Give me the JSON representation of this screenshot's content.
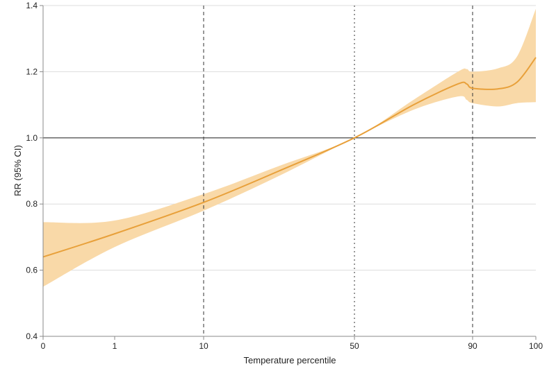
{
  "chart_data": {
    "type": "line",
    "title": "",
    "xlabel": "Temperature percentile",
    "ylabel": "RR (95% CI)",
    "ylim": [
      0.4,
      1.4
    ],
    "yticks": [
      0.4,
      0.6,
      0.8,
      1.0,
      1.2,
      1.4
    ],
    "ytick_labels": [
      "0.4",
      "0.6",
      "0.8",
      "1.0",
      "1.2",
      "1.4"
    ],
    "xticks": [
      0,
      1,
      10,
      50,
      90,
      100
    ],
    "xtick_labels": [
      "0",
      "1",
      "10",
      "50",
      "90",
      "100"
    ],
    "grid": true,
    "reference_line_y": 1.0,
    "vertical_lines": [
      {
        "x": 10,
        "style": "dashed"
      },
      {
        "x": 50,
        "style": "dotted"
      },
      {
        "x": 90,
        "style": "dashed"
      }
    ],
    "series": [
      {
        "x": [
          0,
          1,
          10,
          30,
          50,
          70,
          85,
          88,
          90,
          94,
          97,
          100
        ],
        "y": [
          0.64,
          0.71,
          0.805,
          0.9,
          1.0,
          1.1,
          1.163,
          1.163,
          1.15,
          1.148,
          1.168,
          1.243
        ],
        "lower": [
          0.55,
          0.67,
          0.78,
          0.885,
          1.0,
          1.085,
          1.125,
          1.115,
          1.105,
          1.095,
          1.105,
          1.108
        ],
        "upper": [
          0.745,
          0.75,
          0.83,
          0.915,
          1.0,
          1.115,
          1.2,
          1.208,
          1.2,
          1.21,
          1.245,
          1.39
        ],
        "color": "#E8A03A",
        "band_color": "#F9D9A8"
      }
    ],
    "colors": {
      "grid": "#DDDDDD",
      "axis": "#888888",
      "reference": "#333333",
      "vline": "#444444"
    }
  }
}
